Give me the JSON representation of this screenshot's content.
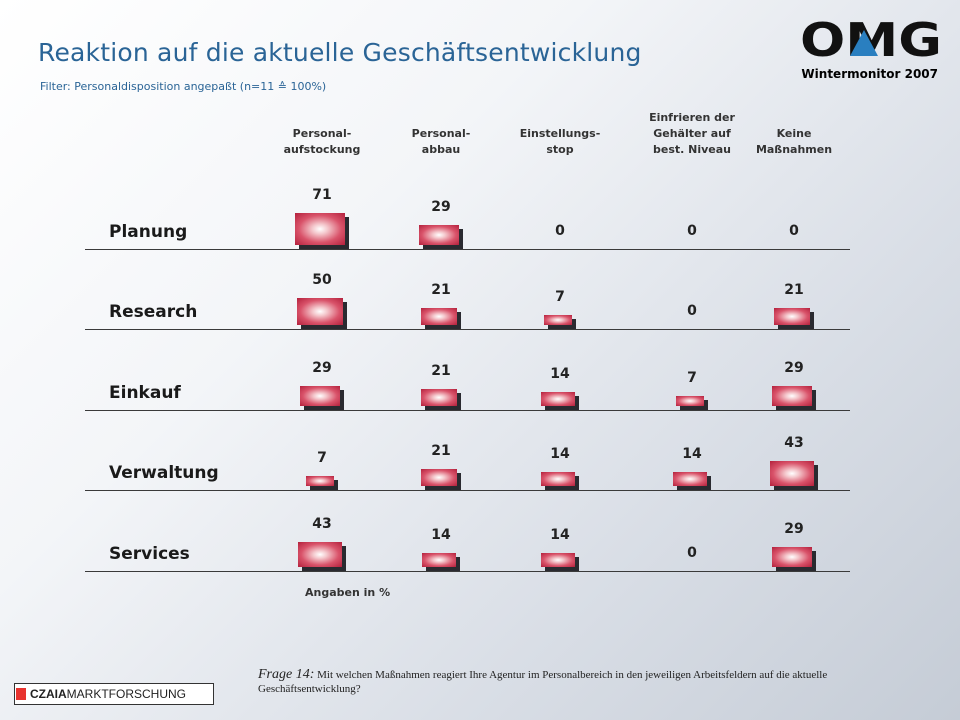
{
  "title": "Reaktion auf die aktuelle Geschäftsentwicklung",
  "filter": "Filter: Personaldisposition angepaßt (n=11 ≙ 100%)",
  "logo_text": "OMG",
  "wintermonitor": "Wintermonitor 2007",
  "note": "Angaben in %",
  "question": {
    "label": "Frage 14:",
    "text": "Mit welchen Maßnahmen reagiert Ihre Agentur im Personalbereich in den jeweiligen Arbeitsfeldern auf die aktuelle Geschäftsentwicklung?"
  },
  "brand": {
    "bold": "CZAIA",
    "rest": " MARKTFORSCHUNG"
  },
  "colors": {
    "title": "#2a6496",
    "bar": "#c8334d",
    "bar_shadow": "#2a2a30"
  },
  "chart_data": {
    "type": "table",
    "unit": "%",
    "columns": [
      "Personal-\naufstockung",
      "Personal-\nabbau",
      "Einstellungs-\nstop",
      "Einfrieren der\nGehälter auf\nbest. Niveau",
      "Keine\nMaßnahmen"
    ],
    "rows": [
      {
        "label": "Planung",
        "values": [
          71,
          29,
          0,
          0,
          0
        ]
      },
      {
        "label": "Research",
        "values": [
          50,
          21,
          7,
          0,
          21
        ]
      },
      {
        "label": "Einkauf",
        "values": [
          29,
          21,
          14,
          7,
          29
        ]
      },
      {
        "label": "Verwaltung",
        "values": [
          7,
          21,
          14,
          14,
          43
        ]
      },
      {
        "label": "Services",
        "values": [
          43,
          14,
          14,
          0,
          29
        ]
      }
    ]
  }
}
